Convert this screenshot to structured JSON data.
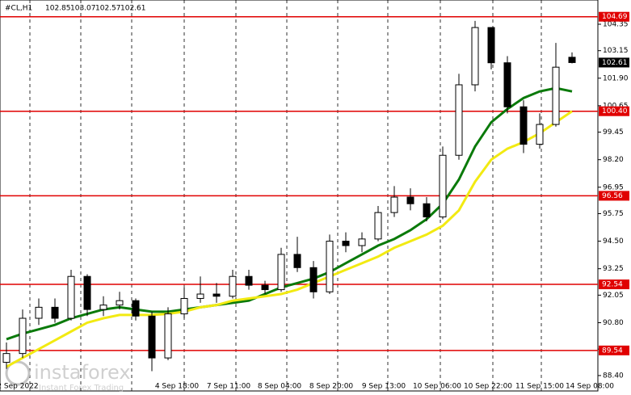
{
  "chart_data": {
    "type": "candlestick",
    "symbol": "#CL,H1",
    "open": [
      89.0,
      89.4,
      91.0,
      91.5,
      91.0,
      92.9,
      91.4,
      91.6,
      91.8,
      91.1,
      89.2,
      91.2,
      91.9,
      92.1,
      92.0,
      92.9,
      92.5,
      92.3,
      93.9,
      93.3,
      92.2,
      94.5,
      94.3,
      94.6,
      95.8,
      96.5,
      96.2,
      95.6,
      98.4,
      101.6,
      104.2,
      102.6,
      100.6,
      98.9,
      99.8,
      102.85
    ],
    "high": [
      89.9,
      91.4,
      91.9,
      91.9,
      93.2,
      93.0,
      92.0,
      92.2,
      91.9,
      91.3,
      91.5,
      92.4,
      92.9,
      92.6,
      93.2,
      93.2,
      92.7,
      94.2,
      94.7,
      93.6,
      94.8,
      94.9,
      94.9,
      96.1,
      97.0,
      96.9,
      96.5,
      98.8,
      102.1,
      104.5,
      104.1,
      102.9,
      100.9,
      100.3,
      103.5,
      103.07
    ],
    "low": [
      88.7,
      89.2,
      90.7,
      90.8,
      90.9,
      91.1,
      91.1,
      91.4,
      90.9,
      88.6,
      89.1,
      91.0,
      91.7,
      91.7,
      91.9,
      92.3,
      92.1,
      92.2,
      93.1,
      91.9,
      92.1,
      94.0,
      94.0,
      94.5,
      95.6,
      95.9,
      95.4,
      95.5,
      98.2,
      101.3,
      102.3,
      100.3,
      98.5,
      98.7,
      99.7,
      102.57
    ],
    "close": [
      89.4,
      91.0,
      91.5,
      91.0,
      92.9,
      91.4,
      91.6,
      91.8,
      91.1,
      89.2,
      91.2,
      91.9,
      92.1,
      92.0,
      92.9,
      92.5,
      92.3,
      93.9,
      93.3,
      92.2,
      94.5,
      94.3,
      94.6,
      95.8,
      96.5,
      96.2,
      95.6,
      98.4,
      101.6,
      104.2,
      102.6,
      100.6,
      98.9,
      99.8,
      102.4,
      102.61
    ],
    "series": [
      {
        "color": "#0a7a0a",
        "values": [
          90.05,
          90.3,
          90.5,
          90.7,
          91.0,
          91.2,
          91.4,
          91.5,
          91.4,
          91.3,
          91.3,
          91.4,
          91.5,
          91.6,
          91.7,
          91.8,
          92.1,
          92.4,
          92.6,
          92.8,
          93.1,
          93.5,
          93.9,
          94.3,
          94.6,
          95.0,
          95.5,
          96.2,
          97.3,
          98.8,
          99.9,
          100.5,
          101.0,
          101.3,
          101.45,
          101.3
        ]
      },
      {
        "color": "#f2ea12",
        "values": [
          88.8,
          89.2,
          89.6,
          90.0,
          90.4,
          90.8,
          91.0,
          91.15,
          91.15,
          91.15,
          91.2,
          91.3,
          91.5,
          91.6,
          91.8,
          91.9,
          92.0,
          92.1,
          92.3,
          92.6,
          92.9,
          93.2,
          93.5,
          93.8,
          94.2,
          94.5,
          94.8,
          95.2,
          95.9,
          97.2,
          98.2,
          98.7,
          99.0,
          99.4,
          99.9,
          100.4
        ]
      }
    ],
    "levels": {
      "color": "#e00000",
      "values": [
        104.69,
        100.4,
        96.56,
        92.54,
        89.54
      ],
      "value_labels": [
        "104.69",
        "100.40",
        "96.56",
        "92.54",
        "89.54"
      ]
    },
    "ylim": [
      87.7,
      105.45
    ],
    "yticks": [
      104.35,
      {
        "value": 103.15,
        "label": "103.15"
      },
      {
        "value": 101.9,
        "label": "101.90"
      },
      100.65,
      99.45,
      {
        "value": 98.2,
        "label": "98.20"
      },
      96.95,
      95.75,
      {
        "value": 94.5,
        "label": "94.50"
      },
      93.25,
      92.05,
      {
        "value": 90.8,
        "label": "90.80"
      },
      {
        "value": 89.6,
        "label": "89.60"
      },
      {
        "value": 88.4,
        "label": "88.40"
      }
    ],
    "xticks": [
      "2 Sep 2022",
      "4 Sep 18:00",
      "7 Sep 11:00",
      "8 Sep 04:00",
      "8 Sep 20:00",
      "9 Sep 13:00",
      "10 Sep 06:00",
      "10 Sep 22:00",
      "11 Sep 15:00",
      "14 Sep 08:00"
    ],
    "watermark": {
      "brand": "instaforex",
      "tagline": "Instant Forex Trading"
    }
  }
}
